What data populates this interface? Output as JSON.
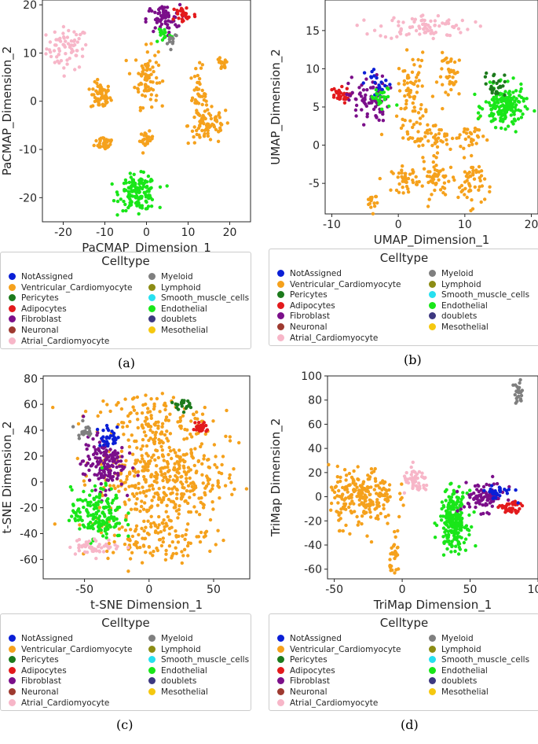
{
  "legend_title": "Celltype",
  "celltypes": [
    {
      "name": "NotAssigned",
      "color": "#0a1fd6"
    },
    {
      "name": "Ventricular_Cardiomyocyte",
      "color": "#f5a11c"
    },
    {
      "name": "Pericytes",
      "color": "#1c7a1c"
    },
    {
      "name": "Adipocytes",
      "color": "#e31a1c"
    },
    {
      "name": "Fibroblast",
      "color": "#7b0f8a"
    },
    {
      "name": "Neuronal",
      "color": "#9e3a30"
    },
    {
      "name": "Atrial_Cardiomyocyte",
      "color": "#f7b6c8"
    },
    {
      "name": "Myeloid",
      "color": "#7f7f7f"
    },
    {
      "name": "Lymphoid",
      "color": "#8c8c14"
    },
    {
      "name": "Smooth_muscle_cells",
      "color": "#26e0f0"
    },
    {
      "name": "Endothelial",
      "color": "#19e619"
    },
    {
      "name": "doublets",
      "color": "#3d3880"
    },
    {
      "name": "Mesothelial",
      "color": "#f5c80f"
    }
  ],
  "chart_data": [
    {
      "type": "scatter",
      "caption": "(a)",
      "xlabel": "PaCMAP_Dimension_1",
      "ylabel": "PaCMAP_Dimension_2",
      "xlim": [
        -25,
        25
      ],
      "ylim": [
        -25,
        21
      ],
      "xticks": [
        -20,
        -10,
        0,
        10,
        20
      ],
      "yticks": [
        -20,
        -10,
        0,
        10,
        20
      ],
      "clusters": [
        {
          "type": "Atrial_Cardiomyocyte",
          "x": -19,
          "y": 11,
          "sx": 2.5,
          "sy": 2.2,
          "n": 70
        },
        {
          "type": "Ventricular_Cardiomyocyte",
          "x": -11,
          "y": 1,
          "sx": 1.2,
          "sy": 1.4,
          "n": 60
        },
        {
          "type": "Ventricular_Cardiomyocyte",
          "x": -10,
          "y": -8.5,
          "sx": 1.2,
          "sy": 0.8,
          "n": 35
        },
        {
          "type": "Ventricular_Cardiomyocyte",
          "x": 0,
          "y": 5,
          "sx": 1.4,
          "sy": 3,
          "n": 80
        },
        {
          "type": "Ventricular_Cardiomyocyte",
          "x": 0,
          "y": -8,
          "sx": 0.8,
          "sy": 0.8,
          "n": 25
        },
        {
          "type": "Ventricular_Cardiomyocyte",
          "x": 12.5,
          "y": 1,
          "sx": 1,
          "sy": 3,
          "n": 45
        },
        {
          "type": "Ventricular_Cardiomyocyte",
          "x": 15,
          "y": -5,
          "sx": 2.5,
          "sy": 2,
          "n": 70
        },
        {
          "type": "Ventricular_Cardiomyocyte",
          "x": 18,
          "y": 7.5,
          "sx": 0.8,
          "sy": 0.8,
          "n": 15
        },
        {
          "type": "Endothelial",
          "x": -2,
          "y": -19,
          "sx": 2.2,
          "sy": 1.8,
          "n": 150
        },
        {
          "type": "Fibroblast",
          "x": 4,
          "y": 17,
          "sx": 2,
          "sy": 1.5,
          "n": 60
        },
        {
          "type": "Adipocytes",
          "x": 9,
          "y": 18,
          "sx": 1.5,
          "sy": 1,
          "n": 30
        },
        {
          "type": "Endothelial",
          "x": 4,
          "y": 14,
          "sx": 1,
          "sy": 1,
          "n": 15
        },
        {
          "type": "Myeloid",
          "x": 6,
          "y": 13,
          "sx": 0.8,
          "sy": 0.8,
          "n": 12
        }
      ]
    },
    {
      "type": "scatter",
      "caption": "(b)",
      "xlabel": "UMAP_Dimension_1",
      "ylabel": "UMAP_Dimension_2",
      "xlim": [
        -11,
        21
      ],
      "ylim": [
        -9,
        19
      ],
      "xticks": [
        -10,
        0,
        10,
        20
      ],
      "yticks": [
        -5,
        0,
        5,
        10,
        15
      ],
      "clusters": [
        {
          "type": "Atrial_Cardiomyocyte",
          "x": 4,
          "y": 15.5,
          "sx": 3.5,
          "sy": 0.8,
          "n": 80
        },
        {
          "type": "Adipocytes",
          "x": -9,
          "y": 6.5,
          "sx": 0.8,
          "sy": 0.5,
          "n": 30
        },
        {
          "type": "Fibroblast",
          "x": -4.5,
          "y": 6,
          "sx": 1.5,
          "sy": 1.5,
          "n": 80
        },
        {
          "type": "NotAssigned",
          "x": -3,
          "y": 8,
          "sx": 1,
          "sy": 1,
          "n": 20
        },
        {
          "type": "Endothelial",
          "x": -2.5,
          "y": 6,
          "sx": 1,
          "sy": 0.8,
          "n": 25
        },
        {
          "type": "Ventricular_Cardiomyocyte",
          "x": 2,
          "y": 7,
          "sx": 1,
          "sy": 2.5,
          "n": 70
        },
        {
          "type": "Ventricular_Cardiomyocyte",
          "x": 5,
          "y": 1,
          "sx": 2.5,
          "sy": 1,
          "n": 60
        },
        {
          "type": "Ventricular_Cardiomyocyte",
          "x": 8,
          "y": 9,
          "sx": 1,
          "sy": 1.5,
          "n": 40
        },
        {
          "type": "Ventricular_Cardiomyocyte",
          "x": 1,
          "y": -4.5,
          "sx": 1,
          "sy": 0.8,
          "n": 40
        },
        {
          "type": "Ventricular_Cardiomyocyte",
          "x": 6,
          "y": -4.5,
          "sx": 1.2,
          "sy": 1.2,
          "n": 50
        },
        {
          "type": "Ventricular_Cardiomyocyte",
          "x": 11,
          "y": -5,
          "sx": 1,
          "sy": 1.5,
          "n": 50
        },
        {
          "type": "Ventricular_Cardiomyocyte",
          "x": 11,
          "y": 1,
          "sx": 1,
          "sy": 1,
          "n": 25
        },
        {
          "type": "Ventricular_Cardiomyocyte",
          "x": -4,
          "y": -7,
          "sx": 0.5,
          "sy": 0.8,
          "n": 15
        },
        {
          "type": "Endothelial",
          "x": 16,
          "y": 5,
          "sx": 1.5,
          "sy": 1.3,
          "n": 170
        },
        {
          "type": "Pericytes",
          "x": 14.5,
          "y": 8,
          "sx": 0.8,
          "sy": 0.8,
          "n": 25
        }
      ]
    },
    {
      "type": "scatter",
      "caption": "(c)",
      "xlabel": "t-SNE Dimension_1",
      "ylabel": "t-SNE Dimension_2",
      "xlim": [
        -82,
        78
      ],
      "ylim": [
        -75,
        82
      ],
      "xticks": [
        -50,
        0,
        50
      ],
      "yticks": [
        -60,
        -40,
        -20,
        0,
        20,
        40,
        60,
        80
      ],
      "clusters": [
        {
          "type": "Ventricular_Cardiomyocyte",
          "x": 10,
          "y": 5,
          "sx": 25,
          "sy": 25,
          "n": 500
        },
        {
          "type": "Ventricular_Cardiomyocyte",
          "x": 5,
          "y": -45,
          "sx": 20,
          "sy": 8,
          "n": 90
        },
        {
          "type": "Ventricular_Cardiomyocyte",
          "x": 0,
          "y": 52,
          "sx": 20,
          "sy": 8,
          "n": 70
        },
        {
          "type": "Fibroblast",
          "x": -35,
          "y": 15,
          "sx": 8,
          "sy": 10,
          "n": 150
        },
        {
          "type": "Endothelial",
          "x": -40,
          "y": -25,
          "sx": 10,
          "sy": 10,
          "n": 170
        },
        {
          "type": "Atrial_Cardiomyocyte",
          "x": -42,
          "y": -50,
          "sx": 10,
          "sy": 3,
          "n": 50
        },
        {
          "type": "NotAssigned",
          "x": -30,
          "y": 35,
          "sx": 5,
          "sy": 4,
          "n": 30
        },
        {
          "type": "Adipocytes",
          "x": 40,
          "y": 42,
          "sx": 3,
          "sy": 3,
          "n": 25
        },
        {
          "type": "Pericytes",
          "x": 25,
          "y": 60,
          "sx": 3,
          "sy": 2,
          "n": 20
        },
        {
          "type": "Myeloid",
          "x": -50,
          "y": 40,
          "sx": 3,
          "sy": 3,
          "n": 20
        }
      ]
    },
    {
      "type": "scatter",
      "caption": "(d)",
      "xlabel": "TriMap Dimension_1",
      "ylabel": "TriMap Dimension_2",
      "xlim": [
        -55,
        100
      ],
      "ylim": [
        -68,
        100
      ],
      "xticks": [
        -50,
        0,
        50,
        100
      ],
      "yticks": [
        -60,
        -40,
        -20,
        0,
        20,
        40,
        60,
        80,
        100
      ],
      "clusters": [
        {
          "type": "Ventricular_Cardiomyocyte",
          "x": -30,
          "y": 0,
          "sx": 12,
          "sy": 12,
          "n": 220
        },
        {
          "type": "Ventricular_Cardiomyocyte",
          "x": -5,
          "y": -50,
          "sx": 2,
          "sy": 8,
          "n": 30
        },
        {
          "type": "Atrial_Cardiomyocyte",
          "x": 10,
          "y": 12,
          "sx": 5,
          "sy": 5,
          "n": 50
        },
        {
          "type": "Endothelial",
          "x": 38,
          "y": -20,
          "sx": 5,
          "sy": 12,
          "n": 220
        },
        {
          "type": "Fibroblast",
          "x": 60,
          "y": 0,
          "sx": 8,
          "sy": 6,
          "n": 90
        },
        {
          "type": "Adipocytes",
          "x": 80,
          "y": -10,
          "sx": 4,
          "sy": 3,
          "n": 40
        },
        {
          "type": "NotAssigned",
          "x": 70,
          "y": 4,
          "sx": 6,
          "sy": 3,
          "n": 30
        },
        {
          "type": "Myeloid",
          "x": 85,
          "y": 85,
          "sx": 2,
          "sy": 5,
          "n": 25
        }
      ]
    }
  ]
}
